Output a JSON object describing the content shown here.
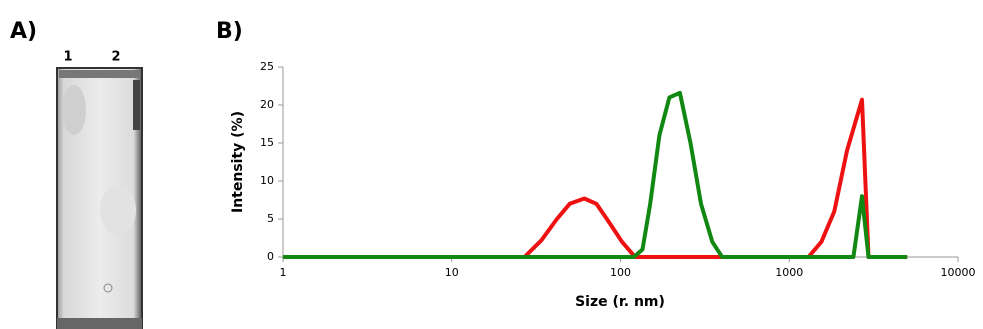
{
  "panel_a": {
    "label": "A)",
    "lanes": [
      "1",
      "2"
    ]
  },
  "chart_data": {
    "type": "line",
    "panel_label": "B)",
    "x_label": "Size (r. nm)",
    "y_label": "Intensity (%)",
    "x_scale": "log",
    "xlim": [
      1,
      10000
    ],
    "xticks": [
      1,
      10,
      100,
      1000,
      10000
    ],
    "ylim": [
      0,
      25
    ],
    "yticks": [
      0,
      5,
      10,
      15,
      20,
      25
    ],
    "grid": false,
    "series": [
      {
        "color": "#ee1111",
        "x": [
          1,
          27,
          34,
          42,
          50,
          61,
          72,
          86,
          102,
          122,
          1300,
          1550,
          1850,
          2200,
          2700,
          2950,
          5000
        ],
        "values": [
          0,
          0,
          2.2,
          5,
          7,
          7.7,
          7,
          4.5,
          2,
          0,
          0,
          2,
          6,
          14,
          20.7,
          0,
          0
        ]
      },
      {
        "color": "#118811",
        "x": [
          1,
          120,
          135,
          150,
          170,
          195,
          225,
          260,
          300,
          350,
          400,
          2400,
          2700,
          2950,
          5000
        ],
        "values": [
          0,
          0,
          1,
          7,
          16,
          21,
          21.6,
          15,
          7,
          2,
          0,
          0,
          8,
          0,
          0
        ]
      }
    ]
  }
}
